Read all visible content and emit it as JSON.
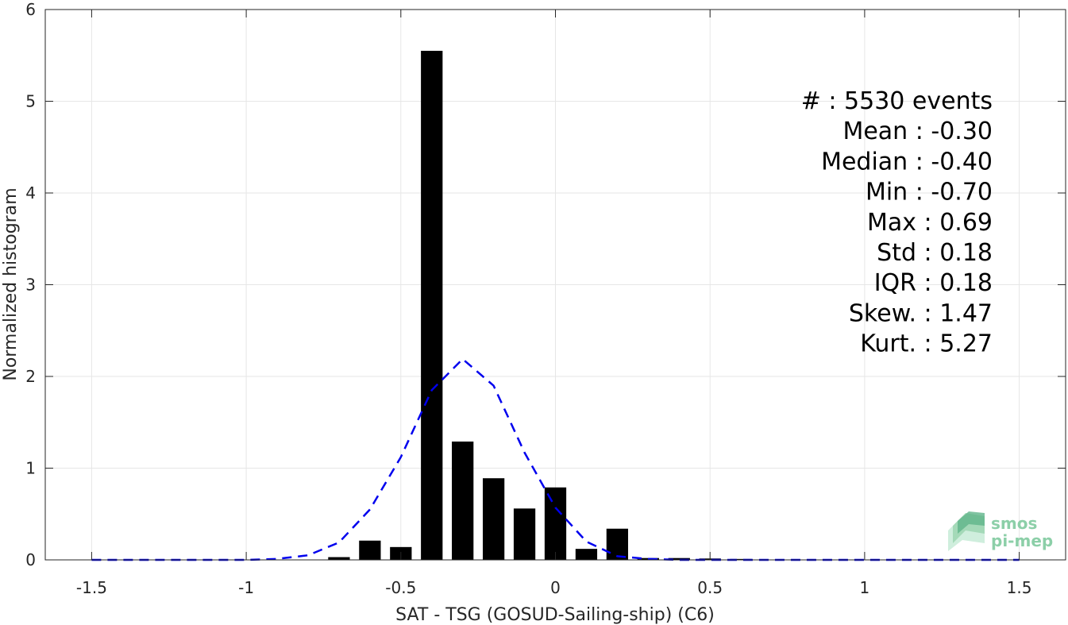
{
  "chart_data": {
    "type": "bar",
    "xlabel": "SAT - TSG (GOSUD-Sailing-ship) (C6)",
    "ylabel": "Normalized histogram",
    "xlim": [
      -1.65,
      1.65
    ],
    "ylim": [
      0,
      6
    ],
    "xticks": [
      -1.5,
      -1,
      -0.5,
      0,
      0.5,
      1,
      1.5
    ],
    "xtick_labels": [
      "-1.5",
      "-1",
      "-0.5",
      "0",
      "0.5",
      "1",
      "1.5"
    ],
    "yticks": [
      0,
      1,
      2,
      3,
      4,
      5,
      6
    ],
    "ytick_labels": [
      "0",
      "1",
      "2",
      "3",
      "4",
      "5",
      "6"
    ],
    "grid": true,
    "bar_width": 0.07,
    "bars": {
      "x": [
        -0.7,
        -0.6,
        -0.5,
        -0.4,
        -0.3,
        -0.2,
        -0.1,
        0.0,
        0.1,
        0.2,
        0.3,
        0.4,
        0.5,
        0.6
      ],
      "values": [
        0.03,
        0.21,
        0.14,
        5.55,
        1.29,
        0.89,
        0.56,
        0.79,
        0.12,
        0.34,
        0.02,
        0.02,
        0.015,
        0.01
      ],
      "color": "#000000"
    },
    "fit_curve": {
      "style": "dashed",
      "color": "#0000ee",
      "x": [
        -1.5,
        -1.4,
        -1.3,
        -1.2,
        -1.1,
        -1.0,
        -0.9,
        -0.8,
        -0.7,
        -0.6,
        -0.5,
        -0.4,
        -0.3,
        -0.2,
        -0.1,
        0.0,
        0.1,
        0.2,
        0.3,
        0.4,
        0.5,
        0.6,
        0.7,
        0.8,
        0.9,
        1.0,
        1.1,
        1.2,
        1.3,
        1.4,
        1.5
      ],
      "y": [
        0,
        0,
        0,
        0,
        0,
        0,
        0.01,
        0.05,
        0.19,
        0.55,
        1.12,
        1.85,
        2.19,
        1.9,
        1.17,
        0.57,
        0.2,
        0.04,
        0.01,
        0,
        0,
        0,
        0,
        0,
        0,
        0,
        0,
        0,
        0,
        0,
        0
      ]
    },
    "stats": [
      "#  : 5530 events",
      "Mean : -0.30",
      "Median : -0.40",
      "Min : -0.70",
      "Max : 0.69",
      "Std : 0.18",
      "IQR : 0.18",
      "Skew. : 1.47",
      "Kurt. : 5.27"
    ]
  },
  "logo": {
    "line1": "smos",
    "line2": "pi-mep",
    "color_light": "#9fd6b4",
    "color_dark": "#5fb48a"
  }
}
